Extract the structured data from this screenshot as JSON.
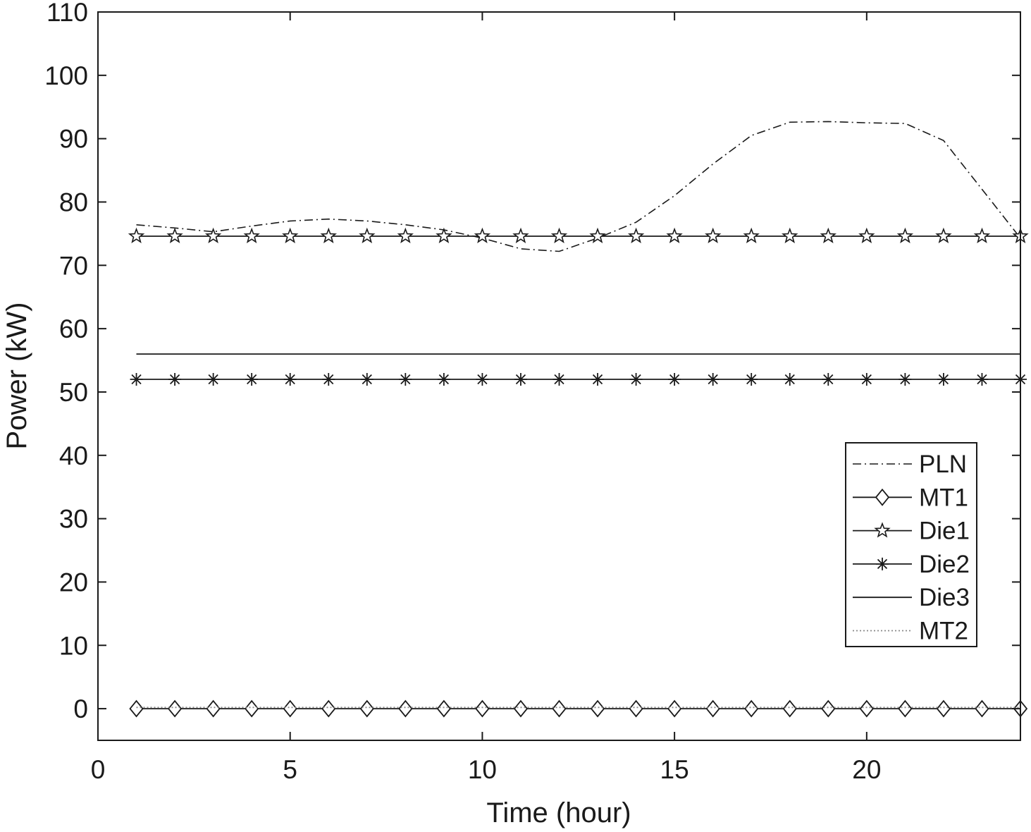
{
  "chart_data": {
    "type": "line",
    "title": "",
    "xlabel": "Time (hour)",
    "ylabel": "Power (kW)",
    "xlim": [
      0,
      24
    ],
    "ylim": [
      -5,
      110
    ],
    "xticks": [
      0,
      5,
      10,
      15,
      20
    ],
    "yticks": [
      0,
      10,
      20,
      30,
      40,
      50,
      60,
      70,
      80,
      90,
      100,
      110
    ],
    "grid": false,
    "legend_position": "bottom-right",
    "x": [
      1,
      2,
      3,
      4,
      5,
      6,
      7,
      8,
      9,
      10,
      11,
      12,
      13,
      14,
      15,
      16,
      17,
      18,
      19,
      20,
      21,
      22,
      23,
      24
    ],
    "series": [
      {
        "name": "PLN",
        "style": "dash-dot",
        "marker": "none",
        "values": [
          76.4,
          75.9,
          75.3,
          76.2,
          77.0,
          77.3,
          77.0,
          76.4,
          75.6,
          74.3,
          72.6,
          72.2,
          74.3,
          76.8,
          81.0,
          86.0,
          90.5,
          92.6,
          92.7,
          92.5,
          92.4,
          89.7,
          82.0,
          74.3
        ]
      },
      {
        "name": "MT1",
        "style": "solid",
        "marker": "diamond",
        "values": [
          0,
          0,
          0,
          0,
          0,
          0,
          0,
          0,
          0,
          0,
          0,
          0,
          0,
          0,
          0,
          0,
          0,
          0,
          0,
          0,
          0,
          0,
          0,
          0
        ]
      },
      {
        "name": "Die1",
        "style": "solid",
        "marker": "star",
        "values": [
          74.6,
          74.6,
          74.6,
          74.6,
          74.6,
          74.6,
          74.6,
          74.6,
          74.6,
          74.6,
          74.6,
          74.6,
          74.6,
          74.6,
          74.6,
          74.6,
          74.6,
          74.6,
          74.6,
          74.6,
          74.6,
          74.6,
          74.6,
          74.6
        ]
      },
      {
        "name": "Die2",
        "style": "solid",
        "marker": "asterisk",
        "values": [
          52,
          52,
          52,
          52,
          52,
          52,
          52,
          52,
          52,
          52,
          52,
          52,
          52,
          52,
          52,
          52,
          52,
          52,
          52,
          52,
          52,
          52,
          52,
          52
        ]
      },
      {
        "name": "Die3",
        "style": "solid",
        "marker": "none",
        "values": [
          56,
          56,
          56,
          56,
          56,
          56,
          56,
          56,
          56,
          56,
          56,
          56,
          56,
          56,
          56,
          56,
          56,
          56,
          56,
          56,
          56,
          56,
          56,
          56
        ]
      },
      {
        "name": "MT2",
        "style": "dotted",
        "marker": "none",
        "values": [
          0.2,
          0.2,
          0.2,
          0.2,
          0.2,
          0.2,
          0.2,
          0.2,
          0.2,
          0.2,
          0.2,
          0.2,
          0.2,
          0.2,
          0.2,
          0.2,
          0.2,
          0.2,
          0.2,
          0.2,
          0.2,
          0.2,
          0.2,
          0.2
        ]
      }
    ],
    "colors": {
      "line": "#1a1a1a",
      "dotted": "#888888",
      "background": "#ffffff"
    }
  }
}
